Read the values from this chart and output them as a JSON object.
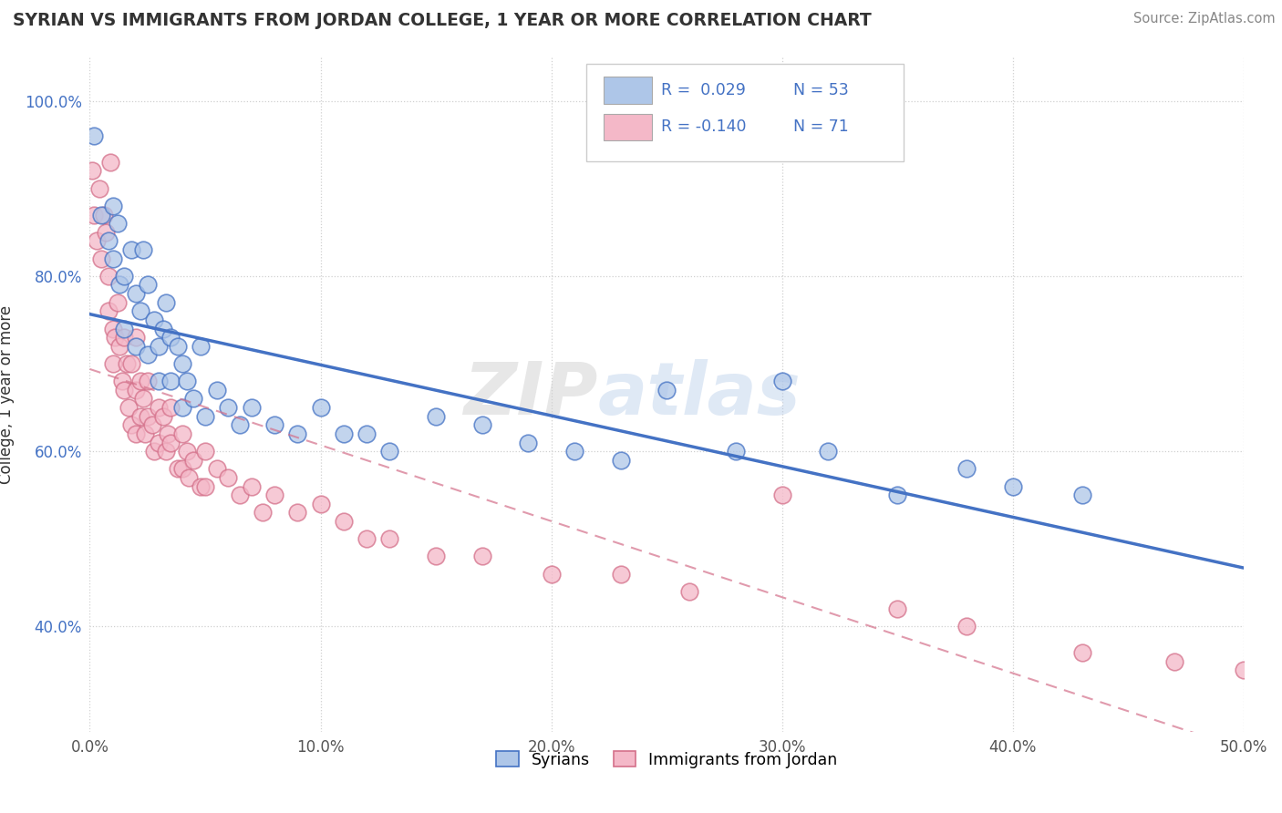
{
  "title": "SYRIAN VS IMMIGRANTS FROM JORDAN COLLEGE, 1 YEAR OR MORE CORRELATION CHART",
  "source_text": "Source: ZipAtlas.com",
  "ylabel": "College, 1 year or more",
  "xlabel": "",
  "xlim": [
    0.0,
    0.5
  ],
  "ylim": [
    0.28,
    1.05
  ],
  "xtick_labels": [
    "0.0%",
    "10.0%",
    "20.0%",
    "30.0%",
    "40.0%",
    "50.0%"
  ],
  "xtick_values": [
    0.0,
    0.1,
    0.2,
    0.3,
    0.4,
    0.5
  ],
  "ytick_labels": [
    "40.0%",
    "60.0%",
    "80.0%",
    "100.0%"
  ],
  "ytick_values": [
    0.4,
    0.6,
    0.8,
    1.0
  ],
  "legend_entries": [
    {
      "color": "#aec6e8",
      "border_color": "#4472c4",
      "r_text": "R =  0.029",
      "n_text": "N = 53",
      "r_color": "#4472c4",
      "n_color": "#4472c4"
    },
    {
      "color": "#f4b8c8",
      "border_color": "#d4708a",
      "r_text": "R = -0.140",
      "n_text": "N = 71",
      "r_color": "#4472c4",
      "n_color": "#4472c4"
    }
  ],
  "syrians_x": [
    0.002,
    0.005,
    0.008,
    0.01,
    0.01,
    0.012,
    0.013,
    0.015,
    0.015,
    0.018,
    0.02,
    0.02,
    0.022,
    0.023,
    0.025,
    0.025,
    0.028,
    0.03,
    0.03,
    0.032,
    0.033,
    0.035,
    0.035,
    0.038,
    0.04,
    0.04,
    0.042,
    0.045,
    0.048,
    0.05,
    0.055,
    0.06,
    0.065,
    0.07,
    0.08,
    0.09,
    0.1,
    0.11,
    0.12,
    0.13,
    0.15,
    0.17,
    0.19,
    0.21,
    0.23,
    0.25,
    0.28,
    0.3,
    0.32,
    0.35,
    0.38,
    0.4,
    0.43
  ],
  "syrians_y": [
    0.96,
    0.87,
    0.84,
    0.88,
    0.82,
    0.86,
    0.79,
    0.8,
    0.74,
    0.83,
    0.78,
    0.72,
    0.76,
    0.83,
    0.79,
    0.71,
    0.75,
    0.72,
    0.68,
    0.74,
    0.77,
    0.73,
    0.68,
    0.72,
    0.7,
    0.65,
    0.68,
    0.66,
    0.72,
    0.64,
    0.67,
    0.65,
    0.63,
    0.65,
    0.63,
    0.62,
    0.65,
    0.62,
    0.62,
    0.6,
    0.64,
    0.63,
    0.61,
    0.6,
    0.59,
    0.67,
    0.6,
    0.68,
    0.6,
    0.55,
    0.58,
    0.56,
    0.55
  ],
  "jordan_x": [
    0.001,
    0.002,
    0.003,
    0.004,
    0.005,
    0.006,
    0.007,
    0.008,
    0.008,
    0.009,
    0.01,
    0.01,
    0.011,
    0.012,
    0.013,
    0.014,
    0.015,
    0.015,
    0.016,
    0.017,
    0.018,
    0.018,
    0.02,
    0.02,
    0.02,
    0.022,
    0.022,
    0.023,
    0.024,
    0.025,
    0.025,
    0.027,
    0.028,
    0.03,
    0.03,
    0.032,
    0.033,
    0.034,
    0.035,
    0.035,
    0.038,
    0.04,
    0.04,
    0.042,
    0.043,
    0.045,
    0.048,
    0.05,
    0.05,
    0.055,
    0.06,
    0.065,
    0.07,
    0.075,
    0.08,
    0.09,
    0.1,
    0.11,
    0.12,
    0.13,
    0.15,
    0.17,
    0.2,
    0.23,
    0.26,
    0.3,
    0.35,
    0.38,
    0.43,
    0.47,
    0.5
  ],
  "jordan_y": [
    0.92,
    0.87,
    0.84,
    0.9,
    0.82,
    0.87,
    0.85,
    0.8,
    0.76,
    0.93,
    0.74,
    0.7,
    0.73,
    0.77,
    0.72,
    0.68,
    0.73,
    0.67,
    0.7,
    0.65,
    0.7,
    0.63,
    0.73,
    0.67,
    0.62,
    0.68,
    0.64,
    0.66,
    0.62,
    0.68,
    0.64,
    0.63,
    0.6,
    0.65,
    0.61,
    0.64,
    0.6,
    0.62,
    0.65,
    0.61,
    0.58,
    0.62,
    0.58,
    0.6,
    0.57,
    0.59,
    0.56,
    0.6,
    0.56,
    0.58,
    0.57,
    0.55,
    0.56,
    0.53,
    0.55,
    0.53,
    0.54,
    0.52,
    0.5,
    0.5,
    0.48,
    0.48,
    0.46,
    0.46,
    0.44,
    0.55,
    0.42,
    0.4,
    0.37,
    0.36,
    0.35
  ],
  "syrians_color": "#aec6e8",
  "syrians_line_color": "#4472c4",
  "jordan_color": "#f4b8c8",
  "jordan_line_color": "#d4708a",
  "R_syrians": 0.029,
  "R_jordan": -0.14,
  "N_syrians": 53,
  "N_jordan": 71,
  "watermark_text": "ZIP",
  "watermark_text2": "atlas",
  "background_color": "#ffffff",
  "grid_color": "#d0d0d0",
  "bottom_legend": [
    "Syrians",
    "Immigrants from Jordan"
  ]
}
